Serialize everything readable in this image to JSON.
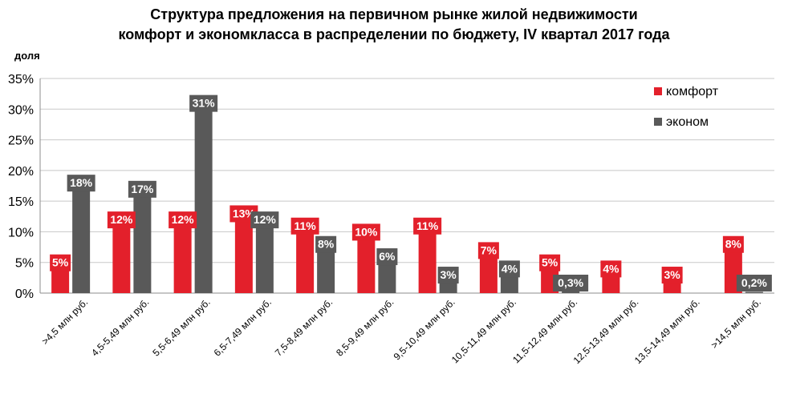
{
  "chart_data": {
    "type": "bar",
    "title_lines": [
      "Структура  предложения на первичном рынке жилой недвижимости",
      "комфорт и  экономкласса в распределении по бюджету, IV квартал 2017 года"
    ],
    "ylabel": "доля",
    "ylim": [
      0,
      35
    ],
    "ytick_values": [
      0,
      5,
      10,
      15,
      20,
      25,
      30,
      35
    ],
    "ytick_labels": [
      "0%",
      "5%",
      "10%",
      "15%",
      "20%",
      "25%",
      "30%",
      "35%"
    ],
    "grid": true,
    "legend_position": "top-right",
    "categories": [
      ">4,5 млн руб.",
      "4,5-5,49 млн руб.",
      "5,5-6,49 млн руб.",
      "6,5-7,49 млн руб.",
      "7,5-8,49 млн руб.",
      "8,5-9,49 млн руб.",
      "9,5-10,49 млн руб.",
      "10,5-11,49 млн руб.",
      "11,5-12,49 млн руб.",
      "12,5-13,49 млн руб.",
      "13,5-14,49 млн руб.",
      ">14,5 млн руб."
    ],
    "series": [
      {
        "name": "комфорт",
        "color": "#e3202b",
        "values": [
          5,
          12,
          12,
          13,
          11,
          10,
          11,
          7,
          5,
          4,
          3,
          8
        ],
        "labels": [
          "5%",
          "12%",
          "12%",
          "13%",
          "11%",
          "10%",
          "11%",
          "7%",
          "5%",
          "4%",
          "3%",
          "8%"
        ]
      },
      {
        "name": "эконом",
        "color": "#595959",
        "values": [
          18,
          17,
          31,
          12,
          8,
          6,
          3,
          4,
          0.3,
          0,
          0,
          0.2
        ],
        "labels": [
          "18%",
          "17%",
          "31%",
          "12%",
          "8%",
          "6%",
          "3%",
          "4%",
          "0,3%",
          "",
          "",
          "0,2%"
        ]
      }
    ]
  }
}
